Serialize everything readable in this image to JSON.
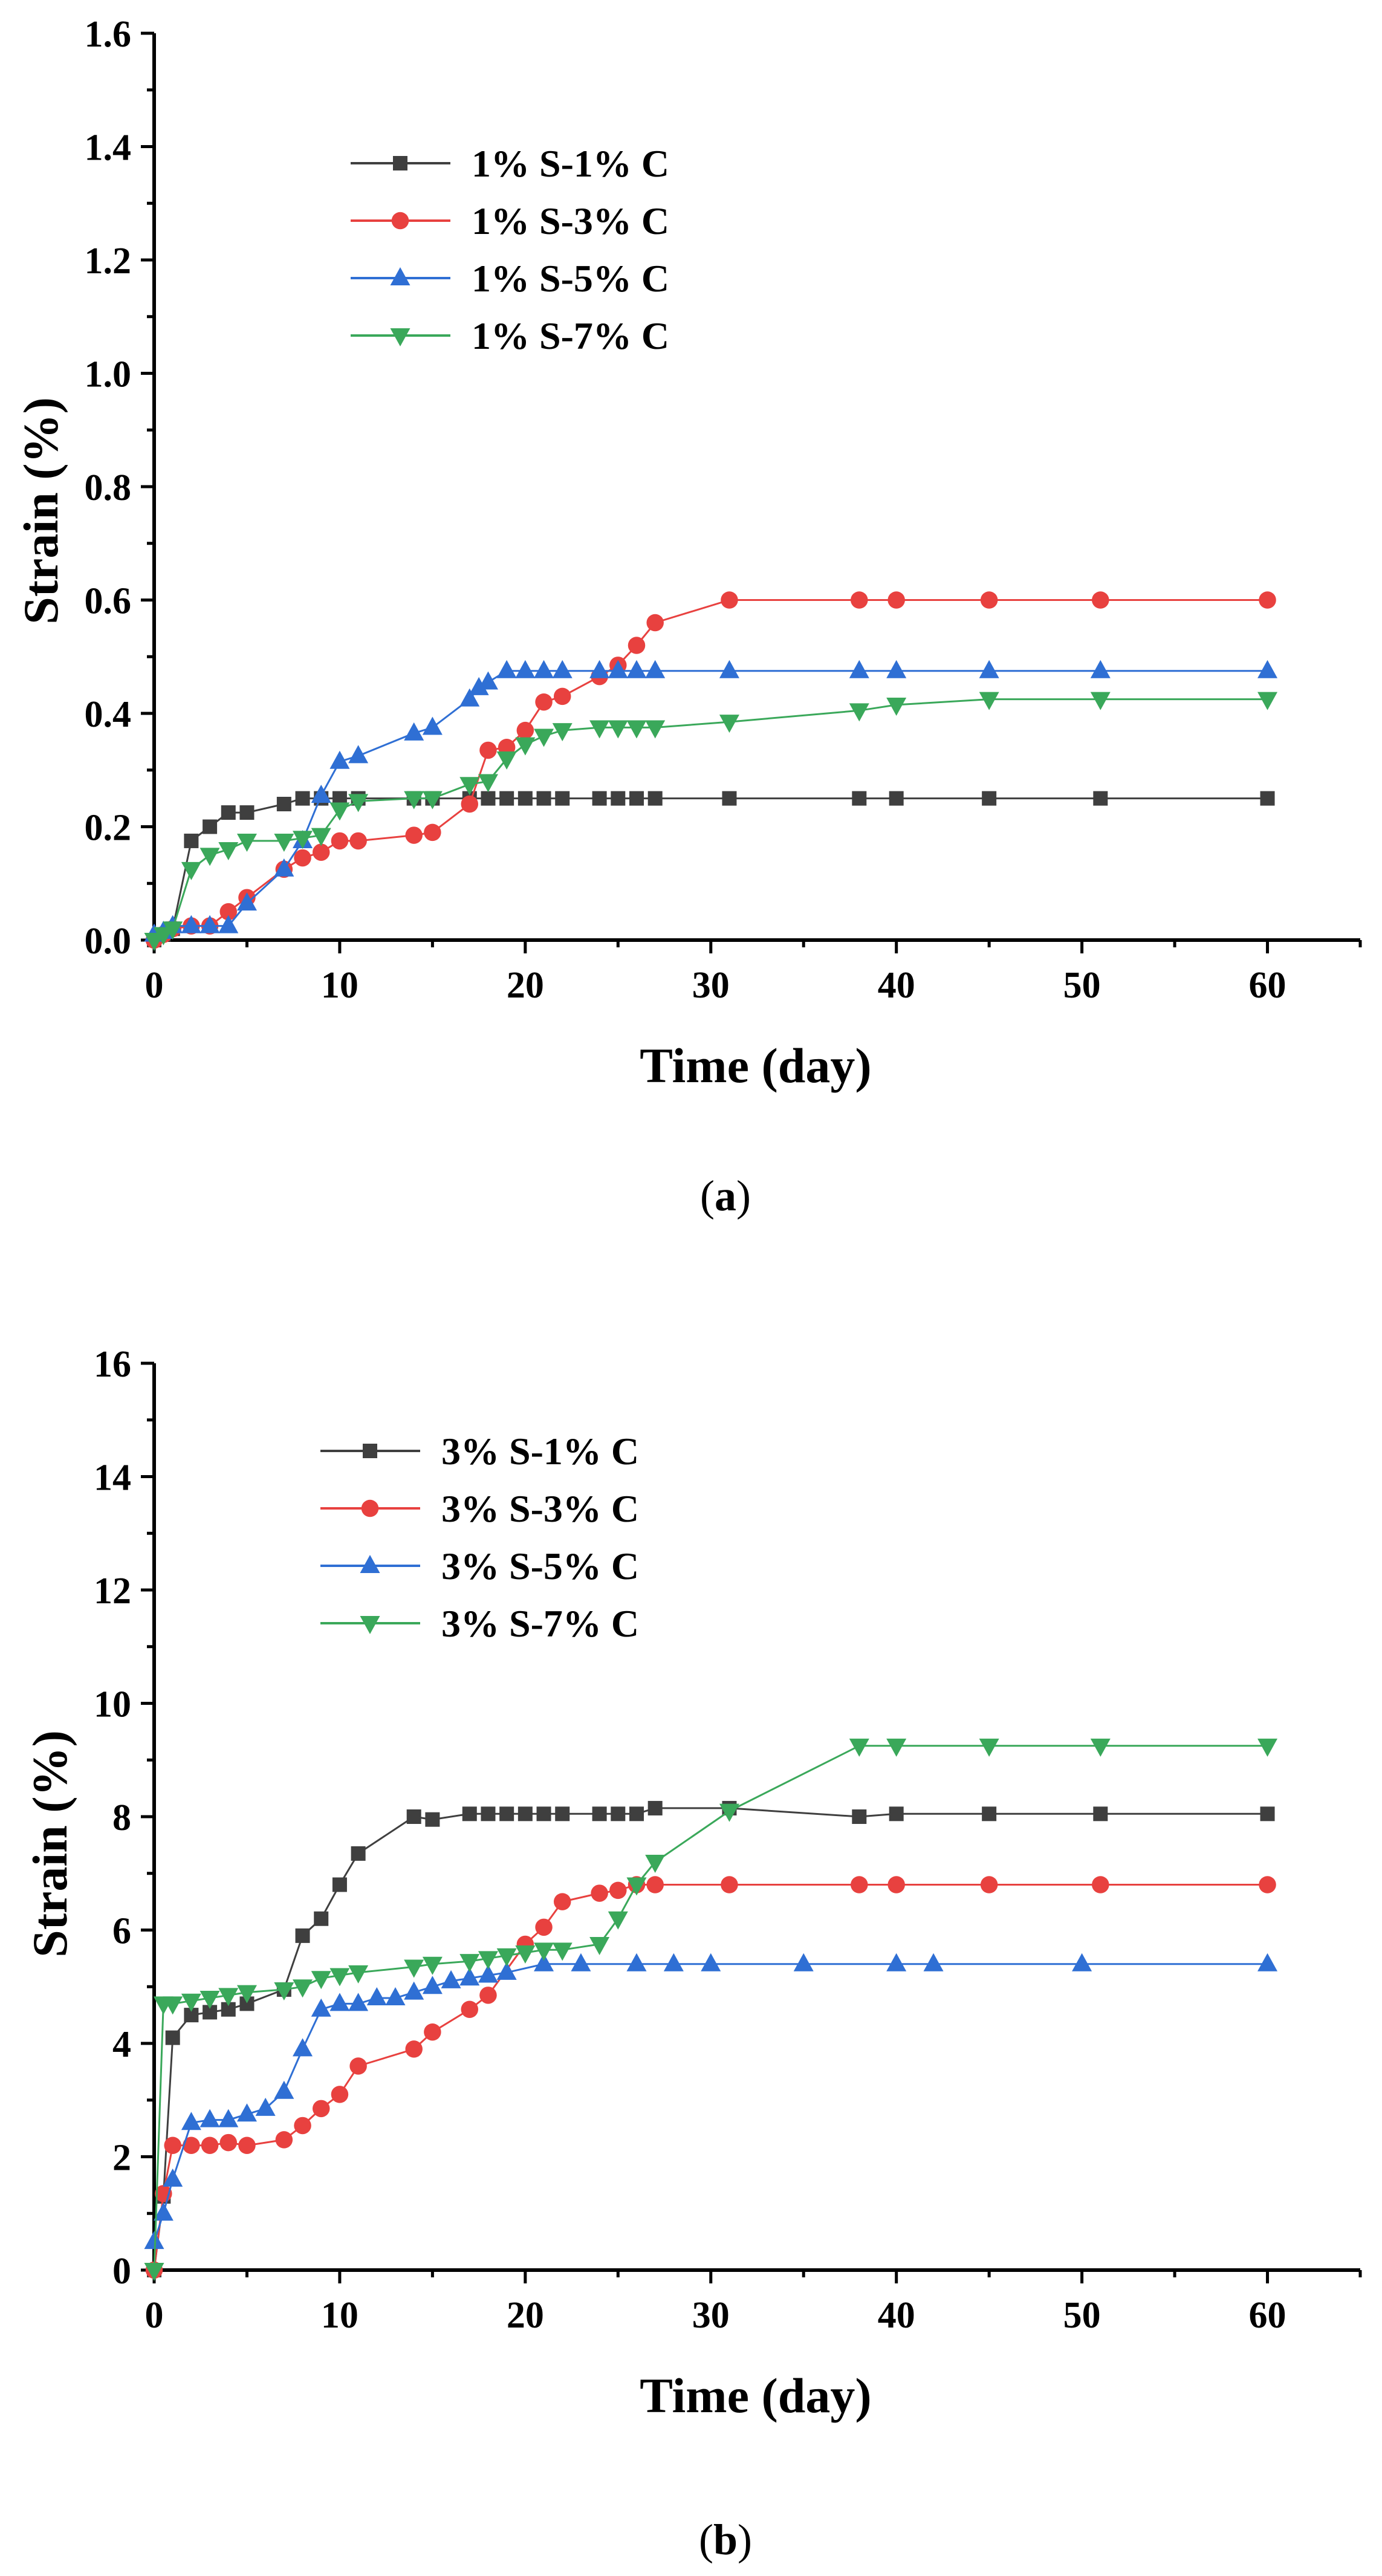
{
  "chart_data": [
    {
      "panel_label": "a",
      "type": "line",
      "xlabel": "Time (day)",
      "ylabel": "Strain (%)",
      "xlim": [
        0,
        65
      ],
      "ylim": [
        0,
        1.6
      ],
      "xticks": [
        0,
        10,
        20,
        30,
        40,
        50,
        60
      ],
      "yticks": [
        0.0,
        0.2,
        0.4,
        0.6,
        0.8,
        1.0,
        1.2,
        1.4,
        1.6
      ],
      "ytick_labels": [
        "0.0",
        "0.2",
        "0.4",
        "0.6",
        "0.8",
        "1.0",
        "1.2",
        "1.4",
        "1.6"
      ],
      "legend_position": "upper-left",
      "series": [
        {
          "name": "1% S-1% C",
          "color": "#3f3f3f",
          "marker": "square",
          "x": [
            0,
            0.5,
            1,
            2,
            3,
            4,
            5,
            7,
            8,
            9,
            10,
            11,
            14,
            15,
            17,
            18,
            19,
            20,
            21,
            22,
            24,
            25,
            26,
            27,
            31,
            38,
            40,
            45,
            51,
            60
          ],
          "y": [
            0,
            0.01,
            0.02,
            0.175,
            0.2,
            0.225,
            0.225,
            0.24,
            0.25,
            0.25,
            0.25,
            0.25,
            0.25,
            0.25,
            0.25,
            0.25,
            0.25,
            0.25,
            0.25,
            0.25,
            0.25,
            0.25,
            0.25,
            0.25,
            0.25,
            0.25,
            0.25,
            0.25,
            0.25,
            0.25
          ]
        },
        {
          "name": "1% S-3% C",
          "color": "#e8413f",
          "marker": "circle",
          "x": [
            0,
            0.5,
            1,
            2,
            3,
            4,
            5,
            7,
            8,
            9,
            10,
            11,
            14,
            15,
            17,
            18,
            19,
            20,
            21,
            22,
            24,
            25,
            26,
            27,
            31,
            38,
            40,
            45,
            51,
            60
          ],
          "y": [
            0,
            0.01,
            0.02,
            0.025,
            0.025,
            0.05,
            0.075,
            0.125,
            0.145,
            0.155,
            0.175,
            0.175,
            0.185,
            0.19,
            0.24,
            0.335,
            0.34,
            0.37,
            0.42,
            0.43,
            0.465,
            0.485,
            0.52,
            0.56,
            0.6,
            0.6,
            0.6,
            0.6,
            0.6,
            0.6
          ]
        },
        {
          "name": "1% S-5% C",
          "color": "#2f6fd4",
          "marker": "triangle-up",
          "x": [
            0,
            0.5,
            1,
            2,
            3,
            4,
            5,
            7,
            8,
            9,
            10,
            11,
            14,
            15,
            17,
            17.5,
            18,
            19,
            20,
            21,
            22,
            24,
            25,
            26,
            27,
            31,
            38,
            40,
            45,
            51,
            60
          ],
          "y": [
            0.01,
            0.015,
            0.025,
            0.025,
            0.025,
            0.025,
            0.065,
            0.125,
            0.175,
            0.255,
            0.315,
            0.325,
            0.365,
            0.375,
            0.425,
            0.445,
            0.455,
            0.475,
            0.475,
            0.475,
            0.475,
            0.475,
            0.475,
            0.475,
            0.475,
            0.475,
            0.475,
            0.475,
            0.475,
            0.475,
            0.475
          ]
        },
        {
          "name": "1% S-7% C",
          "color": "#3aa85a",
          "marker": "triangle-down",
          "x": [
            0,
            0.5,
            1,
            2,
            3,
            4,
            5,
            7,
            8,
            9,
            10,
            11,
            14,
            15,
            17,
            18,
            19,
            20,
            21,
            22,
            24,
            25,
            26,
            27,
            31,
            38,
            40,
            45,
            51,
            60
          ],
          "y": [
            0,
            0.01,
            0.02,
            0.125,
            0.15,
            0.16,
            0.175,
            0.175,
            0.18,
            0.185,
            0.23,
            0.245,
            0.25,
            0.25,
            0.275,
            0.28,
            0.32,
            0.345,
            0.36,
            0.37,
            0.375,
            0.375,
            0.375,
            0.375,
            0.385,
            0.405,
            0.415,
            0.425,
            0.425,
            0.425
          ]
        }
      ]
    },
    {
      "panel_label": "b",
      "type": "line",
      "xlabel": "Time (day)",
      "ylabel": "Strain (%)",
      "xlim": [
        0,
        65
      ],
      "ylim": [
        0,
        16
      ],
      "xticks": [
        0,
        10,
        20,
        30,
        40,
        50,
        60
      ],
      "yticks": [
        0,
        2,
        4,
        6,
        8,
        10,
        12,
        14,
        16
      ],
      "ytick_labels": [
        "0",
        "2",
        "4",
        "6",
        "8",
        "10",
        "12",
        "14",
        "16"
      ],
      "legend_position": "upper-left",
      "series": [
        {
          "name": "3% S-1% C",
          "color": "#3f3f3f",
          "marker": "square",
          "x": [
            0,
            0.5,
            1,
            2,
            3,
            4,
            5,
            7,
            8,
            9,
            10,
            11,
            14,
            15,
            17,
            18,
            19,
            20,
            21,
            22,
            24,
            25,
            26,
            27,
            31,
            38,
            40,
            45,
            51,
            60
          ],
          "y": [
            0,
            1.3,
            4.1,
            4.5,
            4.55,
            4.6,
            4.7,
            4.95,
            5.9,
            6.2,
            6.8,
            7.35,
            8.0,
            7.95,
            8.05,
            8.05,
            8.05,
            8.05,
            8.05,
            8.05,
            8.05,
            8.05,
            8.05,
            8.15,
            8.15,
            8.0,
            8.05,
            8.05,
            8.05,
            8.05
          ]
        },
        {
          "name": "3% S-3% C",
          "color": "#e8413f",
          "marker": "circle",
          "x": [
            0,
            0.5,
            1,
            2,
            3,
            4,
            5,
            7,
            8,
            9,
            10,
            11,
            14,
            15,
            17,
            18,
            20,
            21,
            22,
            24,
            25,
            26,
            27,
            31,
            38,
            40,
            45,
            51,
            60
          ],
          "y": [
            0,
            1.35,
            2.2,
            2.2,
            2.2,
            2.25,
            2.2,
            2.3,
            2.55,
            2.85,
            3.1,
            3.6,
            3.9,
            4.2,
            4.6,
            4.85,
            5.75,
            6.05,
            6.5,
            6.65,
            6.7,
            6.8,
            6.8,
            6.8,
            6.8,
            6.8,
            6.8,
            6.8,
            6.8
          ]
        },
        {
          "name": "3% S-5% C",
          "color": "#2f6fd4",
          "marker": "triangle-up",
          "x": [
            0,
            0.5,
            1,
            2,
            3,
            4,
            5,
            6,
            7,
            8,
            9,
            10,
            11,
            12,
            13,
            14,
            15,
            16,
            17,
            18,
            19,
            21,
            23,
            26,
            28,
            30,
            35,
            40,
            42,
            50,
            60
          ],
          "y": [
            0.5,
            1.0,
            1.6,
            2.6,
            2.65,
            2.65,
            2.75,
            2.85,
            3.15,
            3.9,
            4.6,
            4.7,
            4.7,
            4.8,
            4.8,
            4.9,
            5.0,
            5.1,
            5.15,
            5.2,
            5.25,
            5.4,
            5.4,
            5.4,
            5.4,
            5.4,
            5.4,
            5.4,
            5.4,
            5.4,
            5.4
          ]
        },
        {
          "name": "3% S-7% C",
          "color": "#3aa85a",
          "marker": "triangle-down",
          "x": [
            0,
            0.5,
            1,
            2,
            3,
            4,
            5,
            7,
            8,
            9,
            10,
            11,
            14,
            15,
            17,
            18,
            19,
            20,
            21,
            22,
            24,
            25,
            26,
            27,
            31,
            38,
            40,
            45,
            51,
            60
          ],
          "y": [
            0,
            4.7,
            4.7,
            4.75,
            4.8,
            4.85,
            4.9,
            4.95,
            5.0,
            5.15,
            5.2,
            5.25,
            5.35,
            5.4,
            5.45,
            5.5,
            5.55,
            5.6,
            5.65,
            5.65,
            5.75,
            6.2,
            6.8,
            7.2,
            8.1,
            9.25,
            9.25,
            9.25,
            9.25,
            9.25
          ]
        }
      ]
    }
  ]
}
